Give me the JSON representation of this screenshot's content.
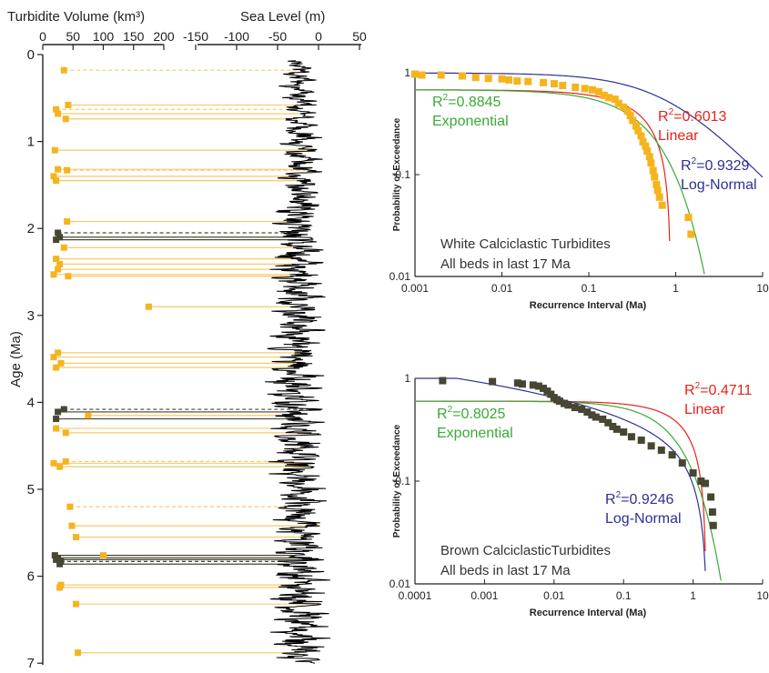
{
  "chart_data": [
    {
      "type": "scatter",
      "panel": "left",
      "ylabel": "Age (Ma)",
      "y_ticks": [
        "0",
        "1",
        "2",
        "3",
        "4",
        "5",
        "6",
        "7"
      ],
      "ylim": [
        0,
        7
      ],
      "volume_axis": {
        "label": "Turbidite Volume (km³)",
        "ticks": [
          "0",
          "50",
          "100",
          "150",
          "200"
        ],
        "range": [
          0,
          200
        ]
      },
      "sealevel_axis": {
        "label": "Sea Level (m)",
        "ticks": [
          "-150",
          "-100",
          "-50",
          "0",
          "50"
        ],
        "range": [
          -150,
          50
        ]
      },
      "colors": {
        "white": "#f5b41e",
        "white_line": "#f7c96a",
        "brown": "#474633",
        "sea_level": "#000000"
      },
      "series": [
        {
          "name": "",
          "kind": "white",
          "points": [
            {
              "age": 0.18,
              "volume": 35,
              "dashed": true
            },
            {
              "age": 0.58,
              "volume": 42,
              "dashed": false
            },
            {
              "age": 0.63,
              "volume": 22,
              "dashed": true
            },
            {
              "age": 0.68,
              "volume": 25,
              "dashed": false
            },
            {
              "age": 0.74,
              "volume": 38,
              "dashed": false
            },
            {
              "age": 1.1,
              "volume": 20,
              "dashed": false
            },
            {
              "age": 1.32,
              "volume": 25,
              "dashed": false
            },
            {
              "age": 1.33,
              "volume": 40,
              "dashed": true
            },
            {
              "age": 1.4,
              "volume": 18,
              "dashed": false
            },
            {
              "age": 1.45,
              "volume": 22,
              "dashed": false
            },
            {
              "age": 1.92,
              "volume": 40,
              "dashed": false
            },
            {
              "age": 2.22,
              "volume": 35,
              "dashed": false
            },
            {
              "age": 2.35,
              "volume": 22,
              "dashed": false
            },
            {
              "age": 2.41,
              "volume": 28,
              "dashed": false
            },
            {
              "age": 2.47,
              "volume": 25,
              "dashed": false
            },
            {
              "age": 2.53,
              "volume": 18,
              "dashed": false
            },
            {
              "age": 2.55,
              "volume": 42,
              "dashed": false
            },
            {
              "age": 2.9,
              "volume": 175,
              "dashed": false
            },
            {
              "age": 3.43,
              "volume": 25,
              "dashed": false
            },
            {
              "age": 3.48,
              "volume": 18,
              "dashed": false
            },
            {
              "age": 3.55,
              "volume": 30,
              "dashed": false
            },
            {
              "age": 3.6,
              "volume": 22,
              "dashed": false
            },
            {
              "age": 4.15,
              "volume": 75,
              "dashed": false
            },
            {
              "age": 4.3,
              "volume": 22,
              "dashed": false
            },
            {
              "age": 4.35,
              "volume": 38,
              "dashed": false
            },
            {
              "age": 4.68,
              "volume": 38,
              "dashed": true
            },
            {
              "age": 4.7,
              "volume": 18,
              "dashed": false
            },
            {
              "age": 4.74,
              "volume": 28,
              "dashed": false
            },
            {
              "age": 5.2,
              "volume": 45,
              "dashed": true
            },
            {
              "age": 5.42,
              "volume": 48,
              "dashed": false
            },
            {
              "age": 5.55,
              "volume": 55,
              "dashed": false
            },
            {
              "age": 5.76,
              "volume": 100,
              "dashed": false
            },
            {
              "age": 6.1,
              "volume": 30,
              "dashed": false
            },
            {
              "age": 6.13,
              "volume": 28,
              "dashed": false
            },
            {
              "age": 6.32,
              "volume": 55,
              "dashed": false
            },
            {
              "age": 6.88,
              "volume": 58,
              "dashed": false
            }
          ]
        },
        {
          "name": "",
          "kind": "brown",
          "points": [
            {
              "age": 2.05,
              "volume": 25,
              "dashed": true
            },
            {
              "age": 2.1,
              "volume": 28,
              "dashed": false
            },
            {
              "age": 2.13,
              "volume": 22,
              "dashed": false
            },
            {
              "age": 4.08,
              "volume": 35,
              "dashed": true
            },
            {
              "age": 4.11,
              "volume": 25,
              "dashed": false
            },
            {
              "age": 4.19,
              "volume": 22,
              "dashed": false
            },
            {
              "age": 5.76,
              "volume": 20,
              "dashed": false
            },
            {
              "age": 5.79,
              "volume": 25,
              "dashed": false
            },
            {
              "age": 5.81,
              "volume": 22,
              "dashed": false
            },
            {
              "age": 5.83,
              "volume": 30,
              "dashed": true
            },
            {
              "age": 5.86,
              "volume": 28,
              "dashed": false
            }
          ]
        }
      ]
    },
    {
      "type": "scatter",
      "panel": "top-right",
      "xlabel": "Recurrence Interval (Ma)",
      "ylabel": "Probability of Exceedance",
      "xscale": "log",
      "yscale": "log",
      "xlim": [
        0.001,
        10
      ],
      "ylim": [
        0.01,
        1
      ],
      "x_ticks": [
        "0.001",
        "0.01",
        "0.1",
        "1",
        "10"
      ],
      "y_ticks": [
        "0.01",
        "0.1",
        "1"
      ],
      "annotation": [
        "White Calciclastic Turbidites",
        "All beds in last 17 Ma"
      ],
      "fits": [
        {
          "r2_prefix": "R",
          "r2_sup": "2",
          "r2_value": "=0.6013",
          "label": "Linear",
          "color": "#e8211b"
        },
        {
          "r2_prefix": "R",
          "r2_sup": "2",
          "r2_value": "=0.8845",
          "label": "Exponential",
          "color": "#3aaa35"
        },
        {
          "r2_prefix": "R",
          "r2_sup": "2",
          "r2_value": "=0.9329",
          "label": "Log-Normal",
          "color": "#2e3192"
        }
      ],
      "marker_color": "#f5b41e",
      "x": [
        0.001,
        0.0012,
        0.002,
        0.0035,
        0.005,
        0.007,
        0.01,
        0.012,
        0.015,
        0.02,
        0.03,
        0.04,
        0.05,
        0.07,
        0.09,
        0.11,
        0.13,
        0.15,
        0.17,
        0.2,
        0.22,
        0.25,
        0.28,
        0.3,
        0.32,
        0.35,
        0.37,
        0.4,
        0.42,
        0.45,
        0.47,
        0.5,
        0.52,
        0.55,
        0.57,
        0.6,
        0.62,
        0.65,
        0.7,
        1.4,
        1.5
      ],
      "y": [
        0.97,
        0.95,
        0.95,
        0.93,
        0.9,
        0.88,
        0.87,
        0.85,
        0.83,
        0.82,
        0.8,
        0.78,
        0.75,
        0.72,
        0.7,
        0.68,
        0.65,
        0.6,
        0.57,
        0.55,
        0.5,
        0.46,
        0.42,
        0.38,
        0.34,
        0.3,
        0.27,
        0.24,
        0.21,
        0.19,
        0.17,
        0.15,
        0.13,
        0.11,
        0.095,
        0.08,
        0.07,
        0.06,
        0.05,
        0.038,
        0.026
      ]
    },
    {
      "type": "scatter",
      "panel": "bottom-right",
      "xlabel": "Recurrence Interval (Ma)",
      "ylabel": "Probability of Exceedance",
      "xscale": "log",
      "yscale": "log",
      "xlim": [
        0.0001,
        10
      ],
      "ylim": [
        0.01,
        1
      ],
      "x_ticks": [
        "0.0001",
        "0.001",
        "0.01",
        "0.1",
        "1",
        "10"
      ],
      "y_ticks": [
        "0.01",
        "0.1",
        "1"
      ],
      "annotation": [
        "Brown CalciclasticTurbidites",
        "All beds in last 17 Ma"
      ],
      "fits": [
        {
          "r2_prefix": "R",
          "r2_sup": "2",
          "r2_value": "=0.4711",
          "label": "Linear",
          "color": "#e8211b"
        },
        {
          "r2_prefix": "R",
          "r2_sup": "2",
          "r2_value": "=0.8025",
          "label": "Exponential",
          "color": "#3aaa35"
        },
        {
          "r2_prefix": "R",
          "r2_sup": "2",
          "r2_value": "=0.9246",
          "label": "Log-Normal",
          "color": "#2e3192"
        }
      ],
      "marker_color": "#474633",
      "x": [
        0.00025,
        0.0013,
        0.003,
        0.0035,
        0.005,
        0.006,
        0.007,
        0.008,
        0.009,
        0.01,
        0.011,
        0.012,
        0.014,
        0.016,
        0.02,
        0.025,
        0.03,
        0.035,
        0.04,
        0.05,
        0.06,
        0.07,
        0.08,
        0.1,
        0.13,
        0.18,
        0.25,
        0.35,
        0.5,
        0.7,
        1.0,
        1.3,
        1.5,
        1.8,
        1.9,
        1.95
      ],
      "y": [
        0.95,
        0.93,
        0.9,
        0.88,
        0.86,
        0.84,
        0.8,
        0.75,
        0.7,
        0.65,
        0.62,
        0.6,
        0.57,
        0.55,
        0.52,
        0.5,
        0.47,
        0.44,
        0.42,
        0.4,
        0.37,
        0.34,
        0.32,
        0.3,
        0.27,
        0.25,
        0.22,
        0.2,
        0.18,
        0.15,
        0.12,
        0.1,
        0.095,
        0.07,
        0.05,
        0.037
      ]
    }
  ]
}
